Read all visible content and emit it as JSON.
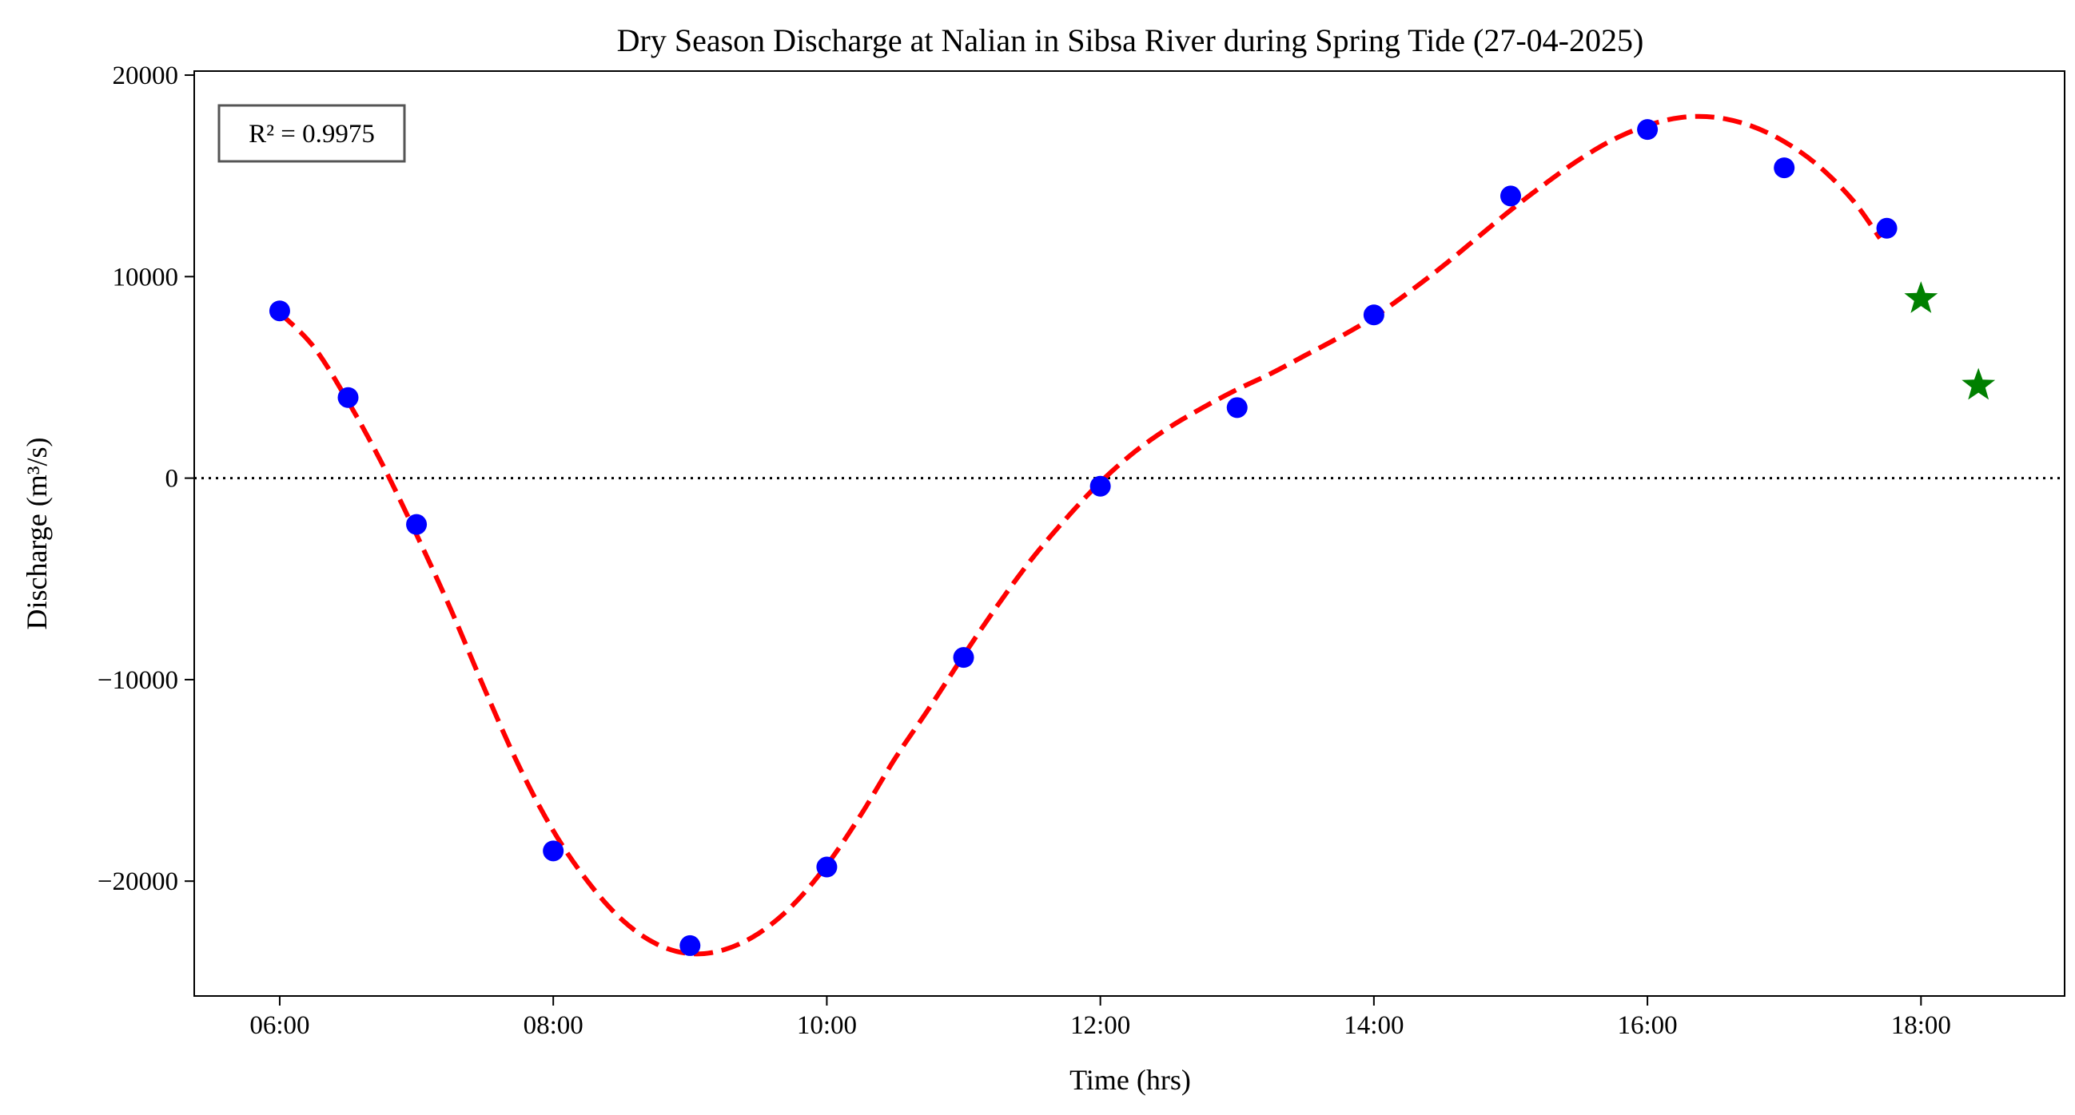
{
  "chart_data": {
    "type": "scatter",
    "title": "Dry Season Discharge at Nalian in Sibsa River during Spring Tide (27-04-2025)",
    "xlabel": "Time (hrs)",
    "ylabel": "Discharge (m³/s)",
    "x_unit": "hours of day",
    "xlim": [
      5.375,
      19.05
    ],
    "ylim": [
      -25700,
      20200
    ],
    "x_ticks": [
      {
        "value": 6,
        "label": "06:00"
      },
      {
        "value": 8,
        "label": "08:00"
      },
      {
        "value": 10,
        "label": "10:00"
      },
      {
        "value": 12,
        "label": "12:00"
      },
      {
        "value": 14,
        "label": "14:00"
      },
      {
        "value": 16,
        "label": "16:00"
      },
      {
        "value": 18,
        "label": "18:00"
      }
    ],
    "y_ticks": [
      {
        "value": 20000,
        "label": "20000"
      },
      {
        "value": 10000,
        "label": "10000"
      },
      {
        "value": 0,
        "label": "0"
      },
      {
        "value": -10000,
        "label": "−10000"
      },
      {
        "value": -20000,
        "label": "−20000"
      }
    ],
    "grid": false,
    "zero_line": {
      "y": 0,
      "style": "dotted",
      "color": "#000000"
    },
    "annotation": {
      "text": "R² = 0.9975",
      "placement": "top-left"
    },
    "series": [
      {
        "kind": "observed",
        "marker": "circle",
        "color": "#0000ff",
        "points": [
          {
            "x": 6.0,
            "y": 8300
          },
          {
            "x": 6.5,
            "y": 4000
          },
          {
            "x": 7.0,
            "y": -2300
          },
          {
            "x": 8.0,
            "y": -18500
          },
          {
            "x": 9.0,
            "y": -23200
          },
          {
            "x": 10.0,
            "y": -19300
          },
          {
            "x": 11.0,
            "y": -8900
          },
          {
            "x": 12.0,
            "y": -400
          },
          {
            "x": 13.0,
            "y": 3500
          },
          {
            "x": 14.0,
            "y": 8100
          },
          {
            "x": 15.0,
            "y": 14000
          },
          {
            "x": 16.0,
            "y": 17300
          },
          {
            "x": 17.0,
            "y": 15400
          },
          {
            "x": 17.75,
            "y": 12400
          }
        ]
      },
      {
        "kind": "fitted",
        "style": "dashed",
        "color": "#ff0000",
        "points": [
          {
            "x": 6.0,
            "y": 8200
          },
          {
            "x": 6.25,
            "y": 6500
          },
          {
            "x": 6.5,
            "y": 3800
          },
          {
            "x": 6.75,
            "y": 700
          },
          {
            "x": 7.0,
            "y": -2800
          },
          {
            "x": 7.25,
            "y": -6500
          },
          {
            "x": 7.5,
            "y": -10500
          },
          {
            "x": 7.75,
            "y": -14300
          },
          {
            "x": 8.0,
            "y": -17500
          },
          {
            "x": 8.25,
            "y": -20000
          },
          {
            "x": 8.5,
            "y": -21900
          },
          {
            "x": 8.75,
            "y": -23100
          },
          {
            "x": 9.0,
            "y": -23600
          },
          {
            "x": 9.25,
            "y": -23400
          },
          {
            "x": 9.5,
            "y": -22600
          },
          {
            "x": 9.75,
            "y": -21200
          },
          {
            "x": 10.0,
            "y": -19200
          },
          {
            "x": 10.25,
            "y": -16700
          },
          {
            "x": 10.5,
            "y": -13900
          },
          {
            "x": 10.75,
            "y": -11400
          },
          {
            "x": 11.0,
            "y": -8800
          },
          {
            "x": 11.25,
            "y": -6300
          },
          {
            "x": 11.5,
            "y": -4000
          },
          {
            "x": 11.75,
            "y": -2000
          },
          {
            "x": 12.0,
            "y": -200
          },
          {
            "x": 12.25,
            "y": 1300
          },
          {
            "x": 12.5,
            "y": 2500
          },
          {
            "x": 12.75,
            "y": 3500
          },
          {
            "x": 13.0,
            "y": 4400
          },
          {
            "x": 13.25,
            "y": 5200
          },
          {
            "x": 13.5,
            "y": 6100
          },
          {
            "x": 13.75,
            "y": 7000
          },
          {
            "x": 14.0,
            "y": 8000
          },
          {
            "x": 14.25,
            "y": 9200
          },
          {
            "x": 14.5,
            "y": 10500
          },
          {
            "x": 14.75,
            "y": 11900
          },
          {
            "x": 15.0,
            "y": 13300
          },
          {
            "x": 15.25,
            "y": 14600
          },
          {
            "x": 15.5,
            "y": 15800
          },
          {
            "x": 15.75,
            "y": 16800
          },
          {
            "x": 16.0,
            "y": 17500
          },
          {
            "x": 16.25,
            "y": 17900
          },
          {
            "x": 16.5,
            "y": 17900
          },
          {
            "x": 16.75,
            "y": 17500
          },
          {
            "x": 17.0,
            "y": 16700
          },
          {
            "x": 17.25,
            "y": 15500
          },
          {
            "x": 17.5,
            "y": 13800
          },
          {
            "x": 17.7,
            "y": 11900
          }
        ]
      },
      {
        "kind": "extrapolated",
        "marker": "star",
        "color": "#008000",
        "points": [
          {
            "x": 18.0,
            "y": 8900
          },
          {
            "x": 18.42,
            "y": 4600
          }
        ]
      }
    ]
  }
}
